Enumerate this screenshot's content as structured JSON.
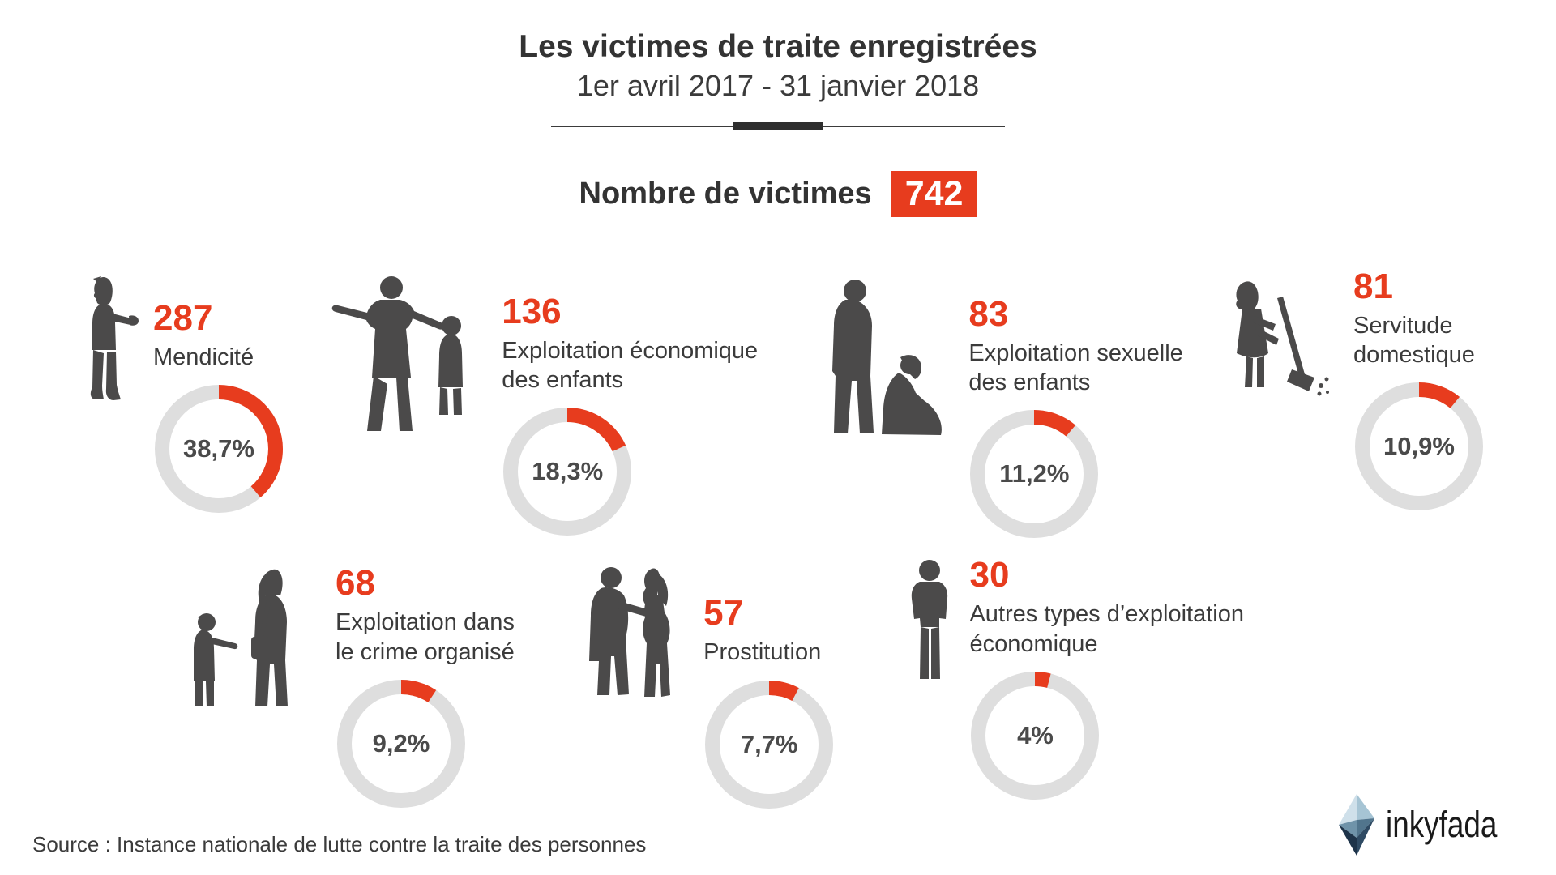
{
  "header": {
    "title": "Les victimes de traite enregistrées",
    "subtitle": "1er avril 2017 - 31 janvier 2018"
  },
  "total": {
    "label": "Nombre de victimes",
    "value": "742"
  },
  "categories": [
    {
      "icon": "child-begging-silhouette",
      "count": "287",
      "label": "Mendicité",
      "percent_label": "38,7%",
      "percent": 38.7
    },
    {
      "icon": "adult-pointing-child-silhouette",
      "count": "136",
      "label": "Exploitation économique\ndes enfants",
      "percent_label": "18,3%",
      "percent": 18.3
    },
    {
      "icon": "man-and-sitting-girl-silhouette",
      "count": "83",
      "label": "Exploitation sexuelle\ndes enfants",
      "percent_label": "11,2%",
      "percent": 11.2
    },
    {
      "icon": "girl-sweeping-silhouette",
      "count": "81",
      "label": "Servitude\ndomestique",
      "percent_label": "10,9%",
      "percent": 10.9
    },
    {
      "icon": "woman-and-child-silhouette",
      "count": "68",
      "label": "Exploitation dans\nle crime organisé",
      "percent_label": "9,2%",
      "percent": 9.2
    },
    {
      "icon": "couple-silhouette",
      "count": "57",
      "label": "Prostitution",
      "percent_label": "7,7%",
      "percent": 7.7
    },
    {
      "icon": "boy-standing-silhouette",
      "count": "30",
      "label": "Autres types d’exploitation\néconomique",
      "percent_label": "4%",
      "percent": 4
    }
  ],
  "footer": {
    "source": "Source : Instance nationale de lutte contre la traite des personnes",
    "brand": "inkyfada"
  },
  "colors": {
    "accent_red": "#e73c1e",
    "text_dark": "#3b3b3b",
    "silhouette": "#4b4a4a",
    "donut_track": "#dedede",
    "badge_text": "#ffffff"
  },
  "chart_data": {
    "type": "pie",
    "title": "Les victimes de traite enregistrées",
    "subtitle": "1er avril 2017 - 31 janvier 2018",
    "total_label": "Nombre de victimes",
    "total": 742,
    "categories": [
      "Mendicité",
      "Exploitation économique des enfants",
      "Exploitation sexuelle des enfants",
      "Servitude domestique",
      "Exploitation dans le crime organisé",
      "Prostitution",
      "Autres types d’exploitation économique"
    ],
    "values": [
      287,
      136,
      83,
      81,
      68,
      57,
      30
    ],
    "percentages": [
      38.7,
      18.3,
      11.2,
      10.9,
      9.2,
      7.7,
      4
    ],
    "legend_position": "none",
    "grid": false
  }
}
